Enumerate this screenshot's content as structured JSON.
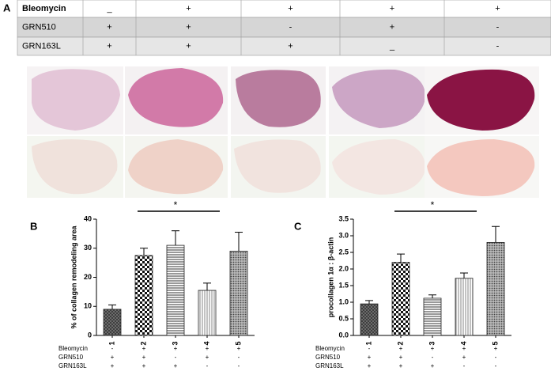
{
  "labels": [
    "A",
    "B",
    "C"
  ],
  "table": {
    "rows": [
      [
        "Bleomycin",
        "_",
        "+",
        "+",
        "+",
        "+"
      ],
      [
        "GRN510",
        "+",
        "+",
        "-",
        "+",
        "-"
      ],
      [
        "GRN163L",
        "+",
        "+",
        "+",
        "_",
        "-"
      ]
    ]
  },
  "chart_data": [
    {
      "type": "bar",
      "ylabel": "% of collagen remodeling area",
      "categories": [
        "1",
        "2",
        "3",
        "4",
        "5"
      ],
      "values": [
        9,
        27.5,
        31,
        15.5,
        29
      ],
      "errors": [
        1.5,
        2.5,
        5,
        2.5,
        6.5
      ],
      "ylim": [
        0,
        40
      ],
      "yticks": [
        0,
        10,
        20,
        30,
        40
      ],
      "annotation": "*",
      "treatments": [
        {
          "name": "Bleomycin",
          "values": [
            "-",
            "+",
            "+",
            "+",
            "+"
          ]
        },
        {
          "name": "GRN510",
          "values": [
            "+",
            "+",
            "-",
            "+",
            "-"
          ]
        },
        {
          "name": "GRN163L",
          "values": [
            "+",
            "+",
            "+",
            "-",
            "-"
          ]
        }
      ]
    },
    {
      "type": "bar",
      "ylabel": "procollagen 1α : β-actin",
      "categories": [
        "1",
        "2",
        "3",
        "4",
        "5"
      ],
      "values": [
        0.95,
        2.2,
        1.12,
        1.72,
        2.8
      ],
      "errors": [
        0.1,
        0.25,
        0.1,
        0.16,
        0.48
      ],
      "ylim": [
        0,
        3.5
      ],
      "yticks": [
        {
          "value": 0,
          "label": "0.0"
        },
        {
          "value": 0.5,
          "label": "0.5"
        },
        {
          "value": 1,
          "label": "1.0"
        },
        {
          "value": 1.5,
          "label": "1.5"
        },
        {
          "value": 2,
          "label": "2.0"
        },
        {
          "value": 2.5,
          "label": "2.5"
        },
        {
          "value": 3,
          "label": "3.0"
        },
        {
          "value": 3.5,
          "label": "3.5"
        }
      ],
      "annotation": "*",
      "treatments": [
        {
          "name": "Bleomycin",
          "values": [
            "-",
            "+",
            "+",
            "+",
            "+"
          ]
        },
        {
          "name": "GRN510",
          "values": [
            "+",
            "+",
            "-",
            "+",
            "-"
          ]
        },
        {
          "name": "GRN163L",
          "values": [
            "+",
            "+",
            "+",
            "-",
            "-"
          ]
        }
      ]
    }
  ]
}
